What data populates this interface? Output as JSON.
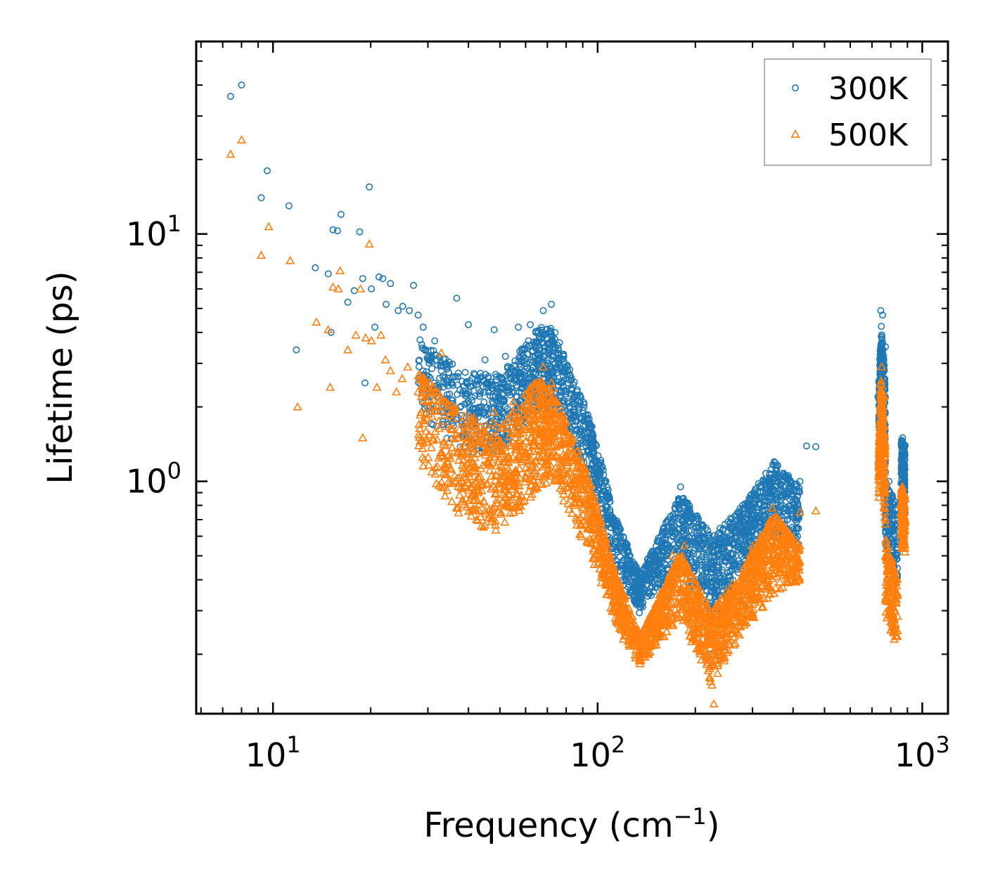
{
  "chart_data": {
    "type": "scatter",
    "title": "",
    "xlabel": "Frequency (cm",
    "xlabel_sup": "−1",
    "xlabel_end": ")",
    "ylabel": "Lifetime (ps)",
    "xscale": "log",
    "yscale": "log",
    "xlim": [
      5.8,
      1200
    ],
    "ylim": [
      0.115,
      60
    ],
    "x_ticks": [
      {
        "value": 10,
        "base": "10",
        "exp": "1"
      },
      {
        "value": 100,
        "base": "10",
        "exp": "2"
      },
      {
        "value": 1000,
        "base": "10",
        "exp": "3"
      }
    ],
    "y_ticks": [
      {
        "value": 1,
        "base": "10",
        "exp": "0"
      },
      {
        "value": 10,
        "base": "10",
        "exp": "1"
      }
    ],
    "legend_position": "top-right",
    "series": [
      {
        "name": "300K",
        "marker": "circle",
        "color": "#1f77b4",
        "points": [
          [
            7.4,
            36
          ],
          [
            8.0,
            40
          ],
          [
            9.2,
            14
          ],
          [
            9.6,
            18
          ],
          [
            11.2,
            13
          ],
          [
            11.8,
            3.4
          ],
          [
            13.5,
            7.3
          ],
          [
            14.8,
            6.9
          ],
          [
            15.1,
            4.0
          ],
          [
            15.3,
            10.4
          ],
          [
            15.8,
            10.3
          ],
          [
            16.2,
            12
          ],
          [
            17.0,
            5.3
          ],
          [
            17.8,
            5.9
          ],
          [
            18.5,
            10.2
          ],
          [
            18.9,
            6.6
          ],
          [
            19.2,
            2.5
          ],
          [
            19.8,
            15.5
          ],
          [
            20.1,
            6.0
          ],
          [
            20.6,
            4.2
          ],
          [
            21.2,
            6.7
          ],
          [
            21.8,
            6.6
          ],
          [
            22.3,
            5.2
          ],
          [
            23.0,
            6.3
          ],
          [
            24.3,
            4.9
          ],
          [
            25.1,
            5.1
          ],
          [
            26.3,
            4.9
          ],
          [
            27.1,
            6.2
          ],
          [
            28.0,
            4.7
          ],
          [
            29.0,
            4.2
          ],
          [
            30.1,
            3.1
          ],
          [
            31.5,
            3.7
          ],
          [
            33.0,
            2.8
          ],
          [
            36.8,
            5.5
          ],
          [
            40.0,
            4.3
          ],
          [
            45.0,
            3.1
          ],
          [
            48.0,
            4.1
          ],
          [
            52.0,
            3.2
          ],
          [
            57.0,
            4.2
          ],
          [
            62.0,
            4.3
          ],
          [
            68.0,
            4.9
          ],
          [
            72.0,
            5.2
          ],
          [
            75.0,
            3.1
          ],
          [
            80.0,
            2.3
          ],
          [
            90.0,
            1.6
          ],
          [
            100.0,
            1.1
          ],
          [
            110.0,
            0.65
          ],
          [
            120.0,
            0.38
          ],
          [
            135.0,
            0.32
          ],
          [
            150.0,
            0.48
          ],
          [
            165.0,
            0.7
          ],
          [
            180.0,
            0.95
          ],
          [
            200.0,
            0.72
          ],
          [
            220.0,
            0.46
          ],
          [
            225.0,
            0.2
          ],
          [
            250.0,
            0.5
          ],
          [
            280.0,
            0.8
          ],
          [
            320.0,
            0.95
          ],
          [
            350.0,
            1.2
          ],
          [
            380.0,
            1.05
          ],
          [
            420.0,
            1.0
          ],
          [
            440.0,
            1.39
          ],
          [
            470.0,
            1.38
          ],
          [
            730.0,
            2.2
          ],
          [
            745.0,
            4.9
          ],
          [
            755.0,
            4.7
          ],
          [
            770.0,
            3.5
          ],
          [
            790.0,
            1.0
          ],
          [
            820.0,
            0.6
          ],
          [
            870.0,
            1.5
          ],
          [
            885.0,
            1.4
          ]
        ],
        "bands": [
          {
            "x0": 28,
            "x1": 38,
            "lo0": 1.9,
            "hi0": 3.8,
            "lo1": 1.3,
            "hi1": 2.8,
            "n": 150
          },
          {
            "x0": 38,
            "x1": 50,
            "lo0": 1.3,
            "hi0": 2.8,
            "lo1": 1.3,
            "hi1": 2.7,
            "n": 180
          },
          {
            "x0": 50,
            "x1": 65,
            "lo0": 1.3,
            "hi0": 2.7,
            "lo1": 1.9,
            "hi1": 4.2,
            "n": 220
          },
          {
            "x0": 65,
            "x1": 73,
            "lo0": 1.9,
            "hi0": 4.2,
            "lo1": 2.0,
            "hi1": 4.2,
            "n": 160
          },
          {
            "x0": 73,
            "x1": 95,
            "lo0": 2.0,
            "hi0": 4.2,
            "lo1": 1.0,
            "hi1": 1.8,
            "n": 220
          },
          {
            "x0": 95,
            "x1": 112,
            "lo0": 1.0,
            "hi0": 1.8,
            "lo1": 0.45,
            "hi1": 0.75,
            "n": 160
          },
          {
            "x0": 112,
            "x1": 135,
            "lo0": 0.45,
            "hi0": 0.75,
            "lo1": 0.29,
            "hi1": 0.42,
            "n": 180
          },
          {
            "x0": 135,
            "x1": 180,
            "lo0": 0.29,
            "hi0": 0.42,
            "lo1": 0.45,
            "hi1": 0.9,
            "n": 260
          },
          {
            "x0": 180,
            "x1": 225,
            "lo0": 0.45,
            "hi0": 0.9,
            "lo1": 0.25,
            "hi1": 0.6,
            "n": 240
          },
          {
            "x0": 225,
            "x1": 280,
            "lo0": 0.25,
            "hi0": 0.6,
            "lo1": 0.45,
            "hi1": 0.8,
            "n": 240
          },
          {
            "x0": 280,
            "x1": 350,
            "lo0": 0.45,
            "hi0": 0.8,
            "lo1": 0.6,
            "hi1": 1.2,
            "n": 260
          },
          {
            "x0": 350,
            "x1": 420,
            "lo0": 0.6,
            "hi0": 1.2,
            "lo1": 0.55,
            "hi1": 0.95,
            "n": 180
          },
          {
            "x0": 735,
            "x1": 748,
            "lo0": 1.0,
            "hi0": 2.5,
            "lo1": 2.0,
            "hi1": 4.4,
            "n": 120
          },
          {
            "x0": 748,
            "x1": 770,
            "lo0": 2.0,
            "hi0": 4.4,
            "lo1": 1.0,
            "hi1": 2.5,
            "n": 120
          },
          {
            "x0": 770,
            "x1": 840,
            "lo0": 0.5,
            "hi0": 1.0,
            "lo1": 0.38,
            "hi1": 0.8,
            "n": 150
          },
          {
            "x0": 860,
            "x1": 885,
            "lo0": 0.75,
            "hi0": 1.5,
            "lo1": 0.7,
            "hi1": 1.4,
            "n": 130
          }
        ]
      },
      {
        "name": "500K",
        "marker": "triangle",
        "color": "#ff7f0e",
        "points": [
          [
            7.4,
            21
          ],
          [
            8.0,
            24
          ],
          [
            9.2,
            8.2
          ],
          [
            9.7,
            10.7
          ],
          [
            11.3,
            7.8
          ],
          [
            11.9,
            2.0
          ],
          [
            13.6,
            4.4
          ],
          [
            14.8,
            4.1
          ],
          [
            15.0,
            2.4
          ],
          [
            15.3,
            6.1
          ],
          [
            15.9,
            6.0
          ],
          [
            16.1,
            7.1
          ],
          [
            17.0,
            3.4
          ],
          [
            18.0,
            3.9
          ],
          [
            18.6,
            6.0
          ],
          [
            18.9,
            1.5
          ],
          [
            19.3,
            3.8
          ],
          [
            19.8,
            9.1
          ],
          [
            20.1,
            3.7
          ],
          [
            20.9,
            2.4
          ],
          [
            21.5,
            3.9
          ],
          [
            22.2,
            3.1
          ],
          [
            23.0,
            2.8
          ],
          [
            24.0,
            2.3
          ],
          [
            25.0,
            2.6
          ],
          [
            26.0,
            2.9
          ],
          [
            28.0,
            2.3
          ],
          [
            33.0,
            3.3
          ],
          [
            36.0,
            1.9
          ],
          [
            42.0,
            1.7
          ],
          [
            48.0,
            1.9
          ],
          [
            55.0,
            2.1
          ],
          [
            62.0,
            2.3
          ],
          [
            68.0,
            2.9
          ],
          [
            72.0,
            2.5
          ],
          [
            80.0,
            1.6
          ],
          [
            90.0,
            1.0
          ],
          [
            100.0,
            0.65
          ],
          [
            110.0,
            0.38
          ],
          [
            120.0,
            0.23
          ],
          [
            135.0,
            0.19
          ],
          [
            150.0,
            0.25
          ],
          [
            170.0,
            0.5
          ],
          [
            185.0,
            0.55
          ],
          [
            200.0,
            0.33
          ],
          [
            225.0,
            0.15
          ],
          [
            228.0,
            0.126
          ],
          [
            250.0,
            0.3
          ],
          [
            300.0,
            0.55
          ],
          [
            345.0,
            0.78
          ],
          [
            390.0,
            0.57
          ],
          [
            420.0,
            0.75
          ],
          [
            470.0,
            0.76
          ],
          [
            735.0,
            0.9
          ],
          [
            750.0,
            2.9
          ],
          [
            765.0,
            2.2
          ],
          [
            800.0,
            0.25
          ],
          [
            820.0,
            0.23
          ],
          [
            870.0,
            0.95
          ],
          [
            885.0,
            0.85
          ]
        ],
        "bands": [
          {
            "x0": 28,
            "x1": 38,
            "lo0": 1.2,
            "hi0": 2.8,
            "lo1": 0.7,
            "hi1": 1.9,
            "n": 160
          },
          {
            "x0": 38,
            "x1": 50,
            "lo0": 0.7,
            "hi0": 1.9,
            "lo1": 0.6,
            "hi1": 1.7,
            "n": 200
          },
          {
            "x0": 50,
            "x1": 65,
            "lo0": 0.6,
            "hi0": 1.7,
            "lo1": 0.9,
            "hi1": 2.6,
            "n": 240
          },
          {
            "x0": 65,
            "x1": 73,
            "lo0": 0.9,
            "hi0": 2.6,
            "lo1": 1.0,
            "hi1": 2.4,
            "n": 160
          },
          {
            "x0": 73,
            "x1": 95,
            "lo0": 1.0,
            "hi0": 2.4,
            "lo1": 0.5,
            "hi1": 1.0,
            "n": 240
          },
          {
            "x0": 95,
            "x1": 112,
            "lo0": 0.5,
            "hi0": 1.0,
            "lo1": 0.28,
            "hi1": 0.45,
            "n": 170
          },
          {
            "x0": 112,
            "x1": 135,
            "lo0": 0.28,
            "hi0": 0.45,
            "lo1": 0.18,
            "hi1": 0.24,
            "n": 180
          },
          {
            "x0": 135,
            "x1": 180,
            "lo0": 0.18,
            "hi0": 0.24,
            "lo1": 0.28,
            "hi1": 0.52,
            "n": 260
          },
          {
            "x0": 180,
            "x1": 225,
            "lo0": 0.28,
            "hi0": 0.52,
            "lo1": 0.15,
            "hi1": 0.3,
            "n": 240
          },
          {
            "x0": 225,
            "x1": 280,
            "lo0": 0.15,
            "hi0": 0.3,
            "lo1": 0.25,
            "hi1": 0.45,
            "n": 240
          },
          {
            "x0": 280,
            "x1": 350,
            "lo0": 0.25,
            "hi0": 0.45,
            "lo1": 0.35,
            "hi1": 0.75,
            "n": 260
          },
          {
            "x0": 350,
            "x1": 420,
            "lo0": 0.35,
            "hi0": 0.75,
            "lo1": 0.4,
            "hi1": 0.55,
            "n": 180
          },
          {
            "x0": 735,
            "x1": 748,
            "lo0": 0.8,
            "hi0": 1.4,
            "lo1": 1.3,
            "hi1": 2.7,
            "n": 120
          },
          {
            "x0": 748,
            "x1": 770,
            "lo0": 1.3,
            "hi0": 2.7,
            "lo1": 0.6,
            "hi1": 1.4,
            "n": 120
          },
          {
            "x0": 770,
            "x1": 840,
            "lo0": 0.28,
            "hi0": 0.6,
            "lo1": 0.22,
            "hi1": 0.4,
            "n": 150
          },
          {
            "x0": 860,
            "x1": 885,
            "lo0": 0.55,
            "hi0": 0.95,
            "lo1": 0.5,
            "hi1": 0.9,
            "n": 130
          }
        ]
      }
    ]
  }
}
